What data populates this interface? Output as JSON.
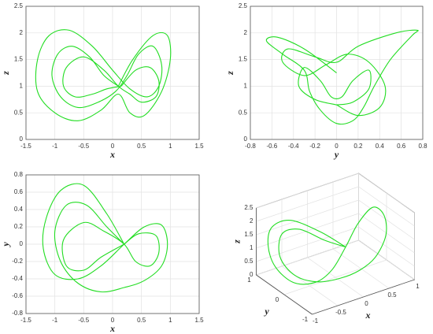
{
  "chart_data": [
    {
      "type": "line",
      "xlabel": "x",
      "ylabel": "z",
      "xlim": [
        -1.5,
        1.5
      ],
      "ylim": [
        0,
        2.5
      ],
      "xticks": [
        -1.5,
        -1,
        -0.5,
        0,
        0.5,
        1,
        1.5
      ],
      "yticks": [
        0,
        0.5,
        1,
        1.5,
        2,
        2.5
      ],
      "grid": true,
      "series": [
        {
          "color": "#22dd22",
          "x": [
            0.1,
            0.35,
            0.7,
            0.95,
            1.0,
            0.85,
            0.55,
            0.3,
            0.1,
            -0.2,
            -0.6,
            -1.0,
            -1.3,
            -1.3,
            -1.1,
            -0.75,
            -0.35,
            0.0,
            0.3,
            0.6,
            0.8,
            0.85,
            0.7,
            0.45,
            0.25,
            0.05,
            -0.25,
            -0.6,
            -0.9,
            -1.05,
            -0.95,
            -0.7,
            -0.4,
            -0.15,
            0.1
          ],
          "values": [
            1.0,
            1.5,
            1.95,
            1.95,
            1.5,
            0.9,
            0.45,
            0.5,
            0.85,
            0.55,
            0.35,
            0.5,
            0.9,
            1.5,
            1.95,
            2.05,
            1.75,
            1.3,
            0.95,
            0.8,
            1.0,
            1.4,
            1.75,
            1.6,
            1.2,
            0.9,
            0.7,
            0.6,
            0.8,
            1.2,
            1.6,
            1.75,
            1.55,
            1.2,
            1.0
          ]
        },
        {
          "color": "#22dd22",
          "x": [
            0.15,
            0.4,
            0.65,
            0.8,
            0.75,
            0.5,
            0.3,
            0.1,
            -0.15,
            -0.5,
            -0.8,
            -0.85,
            -0.65,
            -0.35,
            -0.1,
            0.15
          ],
          "values": [
            1.0,
            1.3,
            1.35,
            1.1,
            0.8,
            0.7,
            0.85,
            1.0,
            1.3,
            1.55,
            1.35,
            1.0,
            0.8,
            0.85,
            0.95,
            1.0
          ]
        }
      ]
    },
    {
      "type": "line",
      "xlabel": "y",
      "ylabel": "z",
      "xlim": [
        -0.8,
        0.8
      ],
      "ylim": [
        0,
        2.5
      ],
      "xticks": [
        -0.8,
        -0.6,
        -0.4,
        -0.2,
        0,
        0.2,
        0.4,
        0.6,
        0.8
      ],
      "yticks": [
        0,
        0.5,
        1,
        1.5,
        2,
        2.5
      ],
      "grid": true,
      "series": [
        {
          "color": "#22dd22",
          "x": [
            0.0,
            -0.3,
            -0.55,
            -0.65,
            -0.5,
            -0.3,
            -0.25,
            -0.15,
            0.0,
            0.15,
            0.25,
            0.35,
            0.5,
            0.7,
            0.75,
            0.55,
            0.2,
            0.0,
            -0.2,
            -0.45,
            -0.5,
            -0.3,
            -0.1,
            0.1,
            0.3,
            0.45,
            0.4,
            0.2,
            0.0
          ],
          "values": [
            1.25,
            1.7,
            1.92,
            1.85,
            1.6,
            1.3,
            0.9,
            0.55,
            0.3,
            0.35,
            0.6,
            1.0,
            1.5,
            1.95,
            2.05,
            2.0,
            1.75,
            1.45,
            1.55,
            1.7,
            1.45,
            1.2,
            1.4,
            1.6,
            1.45,
            1.0,
            0.6,
            0.45,
            0.65
          ]
        },
        {
          "color": "#22dd22",
          "x": [
            0.0,
            -0.2,
            -0.35,
            -0.3,
            -0.15,
            -0.05,
            0.05,
            0.15,
            0.3,
            0.3,
            0.15,
            0.0
          ],
          "values": [
            0.65,
            0.75,
            1.0,
            1.35,
            1.1,
            0.8,
            0.8,
            1.1,
            1.3,
            0.95,
            0.7,
            0.65
          ]
        }
      ]
    },
    {
      "type": "line",
      "xlabel": "x",
      "ylabel": "y",
      "xlim": [
        -1.5,
        1.5
      ],
      "ylim": [
        -0.8,
        0.8
      ],
      "xticks": [
        -1.5,
        -1,
        -0.5,
        0,
        0.5,
        1,
        1.5
      ],
      "yticks": [
        -0.8,
        -0.6,
        -0.4,
        -0.2,
        0,
        0.2,
        0.4,
        0.6,
        0.8
      ],
      "grid": true,
      "series": [
        {
          "color": "#22dd22",
          "x": [
            0.2,
            -0.1,
            -0.5,
            -0.9,
            -1.15,
            -1.2,
            -1.0,
            -0.6,
            -0.2,
            0.2,
            0.55,
            0.85,
            0.95,
            0.85,
            0.55,
            0.2,
            -0.2,
            -0.6,
            -0.9,
            -1.0,
            -0.8,
            -0.45,
            -0.1,
            0.2
          ],
          "values": [
            0.0,
            0.35,
            0.68,
            0.62,
            0.3,
            -0.05,
            -0.35,
            -0.4,
            -0.25,
            0.0,
            0.2,
            0.22,
            0.0,
            -0.25,
            -0.42,
            -0.5,
            -0.55,
            -0.45,
            -0.2,
            0.15,
            0.45,
            0.45,
            0.2,
            0.0
          ]
        },
        {
          "color": "#22dd22",
          "x": [
            0.2,
            0.45,
            0.75,
            0.8,
            0.65,
            0.4,
            0.2,
            -0.15,
            -0.5,
            -0.85,
            -0.8,
            -0.5,
            -0.2,
            0.2
          ],
          "values": [
            0.0,
            0.12,
            0.1,
            -0.1,
            -0.25,
            -0.2,
            0.0,
            0.15,
            0.25,
            0.05,
            -0.25,
            -0.3,
            -0.15,
            0.0
          ]
        }
      ]
    },
    {
      "type": "line3d",
      "xlabel": "x",
      "ylabel": "y",
      "zlabel": "z",
      "xlim": [
        -1,
        1
      ],
      "ylim": [
        -1,
        1
      ],
      "zlim": [
        0,
        2.5
      ],
      "xticks": [
        -1,
        -0.5,
        0,
        0.5,
        1
      ],
      "yticks": [
        -1,
        0,
        1
      ],
      "zticks": [
        0,
        0.5,
        1,
        1.5,
        2,
        2.5
      ],
      "grid": true,
      "series": [
        {
          "color": "#22dd22",
          "x": [
            0.2,
            -0.1,
            -0.5,
            -0.9,
            -1.15,
            -1.2,
            -1.0,
            -0.6,
            -0.2,
            0.2,
            0.55,
            0.85,
            0.95,
            0.85,
            0.55,
            0.2,
            -0.2,
            -0.6,
            -0.9,
            -1.0,
            -0.8,
            -0.45,
            -0.1,
            0.2
          ],
          "y": [
            0.0,
            0.35,
            0.68,
            0.62,
            0.3,
            -0.05,
            -0.35,
            -0.4,
            -0.25,
            0.0,
            0.2,
            0.22,
            0.0,
            -0.25,
            -0.42,
            -0.5,
            -0.55,
            -0.45,
            -0.2,
            0.15,
            0.45,
            0.45,
            0.2,
            0.0
          ],
          "z": [
            1.0,
            1.5,
            1.95,
            2.0,
            1.7,
            1.2,
            0.7,
            0.5,
            0.6,
            1.0,
            1.5,
            1.9,
            1.7,
            1.2,
            0.7,
            0.5,
            0.5,
            0.55,
            0.8,
            1.3,
            1.8,
            1.75,
            1.3,
            1.0
          ]
        }
      ]
    }
  ]
}
